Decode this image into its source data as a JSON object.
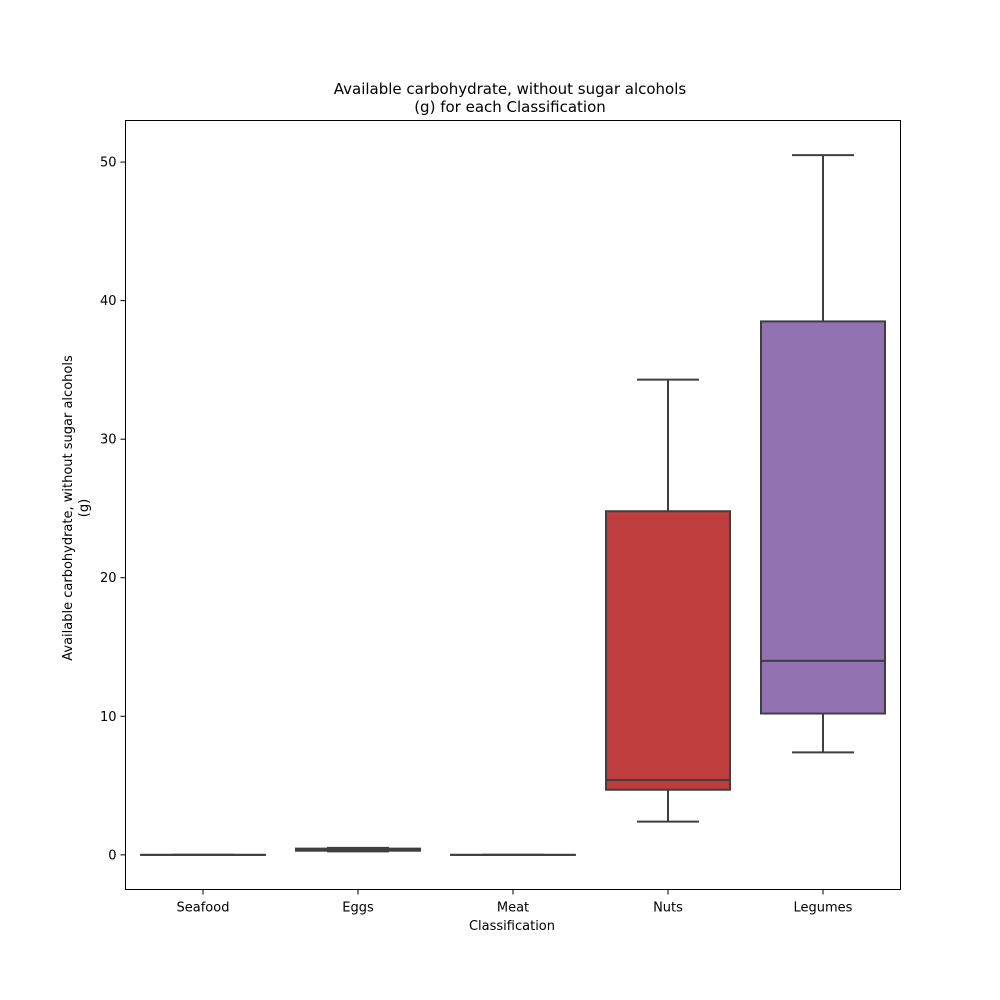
{
  "chart_data": {
    "type": "box",
    "title_lines": [
      "Available carbohydrate, without sugar alcohols",
      "(g) for each Classification"
    ],
    "xlabel": "Classification",
    "ylabel_lines": [
      "Available carbohydrate, without sugar alcohols",
      "(g)"
    ],
    "ylim": [
      -2.5,
      53
    ],
    "yticks": [
      0,
      10,
      20,
      30,
      40,
      50
    ],
    "categories": [
      "Seafood",
      "Eggs",
      "Meat",
      "Nuts",
      "Legumes"
    ],
    "boxes": [
      {
        "category": "Seafood",
        "whisker_low": 0.0,
        "q1": 0.0,
        "median": 0.0,
        "q3": 0.0,
        "whisker_high": 0.0,
        "color": "#3274a1"
      },
      {
        "category": "Eggs",
        "whisker_low": 0.25,
        "q1": 0.3,
        "median": 0.35,
        "q3": 0.45,
        "whisker_high": 0.5,
        "color": "#e1812c"
      },
      {
        "category": "Meat",
        "whisker_low": 0.0,
        "q1": 0.0,
        "median": 0.0,
        "q3": 0.0,
        "whisker_high": 0.0,
        "color": "#3a923a"
      },
      {
        "category": "Nuts",
        "whisker_low": 2.4,
        "q1": 4.7,
        "median": 5.4,
        "q3": 24.8,
        "whisker_high": 34.3,
        "color": "#c03d3e"
      },
      {
        "category": "Legumes",
        "whisker_low": 7.4,
        "q1": 10.2,
        "median": 14.0,
        "q3": 38.5,
        "whisker_high": 50.5,
        "color": "#9372b2"
      }
    ],
    "line_color": "#3f3f3f",
    "grid": false
  }
}
